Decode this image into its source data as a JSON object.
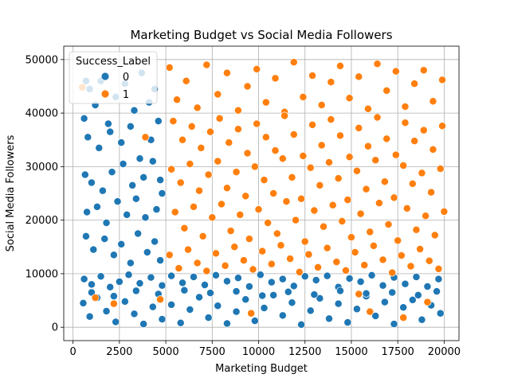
{
  "chart_data": {
    "type": "scatter",
    "title": "Marketing Budget vs Social Media Followers",
    "xlabel": "Marketing Budget",
    "ylabel": "Social Media Followers",
    "xlim": [
      -500,
      20800
    ],
    "ylim": [
      -2500,
      52500
    ],
    "xticks": [
      0,
      2500,
      5000,
      7500,
      10000,
      12500,
      15000,
      17500,
      20000
    ],
    "yticks": [
      0,
      10000,
      20000,
      30000,
      40000,
      50000
    ],
    "grid": true,
    "legend": {
      "title": "Success_Label",
      "position": "top-left"
    },
    "series": [
      {
        "name": "0",
        "color": "#1f77b4",
        "points": [
          [
            600,
            39000
          ],
          [
            700,
            46000
          ],
          [
            900,
            44500
          ],
          [
            1200,
            41500
          ],
          [
            1500,
            46000
          ],
          [
            1900,
            38000
          ],
          [
            2300,
            43000
          ],
          [
            2800,
            45500
          ],
          [
            3300,
            40500
          ],
          [
            3700,
            47500
          ],
          [
            4100,
            42000
          ],
          [
            4400,
            44500
          ],
          [
            800,
            35500
          ],
          [
            1400,
            33500
          ],
          [
            2000,
            36500
          ],
          [
            2600,
            34500
          ],
          [
            3100,
            37500
          ],
          [
            3600,
            31500
          ],
          [
            4200,
            35000
          ],
          [
            4600,
            38500
          ],
          [
            650,
            28500
          ],
          [
            1000,
            27000
          ],
          [
            1600,
            25500
          ],
          [
            2100,
            29000
          ],
          [
            2700,
            30500
          ],
          [
            3200,
            26500
          ],
          [
            3800,
            28000
          ],
          [
            4300,
            31000
          ],
          [
            4700,
            27500
          ],
          [
            750,
            21500
          ],
          [
            1300,
            22500
          ],
          [
            1800,
            19500
          ],
          [
            2400,
            23500
          ],
          [
            2900,
            21000
          ],
          [
            3400,
            24000
          ],
          [
            3900,
            20500
          ],
          [
            4500,
            22000
          ],
          [
            4800,
            25000
          ],
          [
            700,
            17000
          ],
          [
            1100,
            14500
          ],
          [
            1700,
            16500
          ],
          [
            2200,
            13500
          ],
          [
            2600,
            15500
          ],
          [
            3100,
            12000
          ],
          [
            3500,
            17500
          ],
          [
            4000,
            14000
          ],
          [
            4400,
            16000
          ],
          [
            4700,
            12500
          ],
          [
            600,
            9000
          ],
          [
            1000,
            8000
          ],
          [
            1500,
            9500
          ],
          [
            2000,
            7500
          ],
          [
            2500,
            8500
          ],
          [
            3000,
            9800
          ],
          [
            3600,
            8200
          ],
          [
            4200,
            9300
          ],
          [
            4800,
            7800
          ],
          [
            5300,
            9600
          ],
          [
            5900,
            8300
          ],
          [
            6500,
            9400
          ],
          [
            7100,
            7900
          ],
          [
            7700,
            9700
          ],
          [
            8300,
            8600
          ],
          [
            8900,
            9200
          ],
          [
            9500,
            7600
          ],
          [
            10100,
            9800
          ],
          [
            10700,
            8400
          ],
          [
            11300,
            9000
          ],
          [
            11900,
            7700
          ],
          [
            12500,
            9500
          ],
          [
            13100,
            8800
          ],
          [
            13700,
            9600
          ],
          [
            14300,
            7500
          ],
          [
            14900,
            9100
          ],
          [
            15500,
            8500
          ],
          [
            16100,
            9700
          ],
          [
            16700,
            7800
          ],
          [
            17300,
            9300
          ],
          [
            17900,
            8100
          ],
          [
            18500,
            9400
          ],
          [
            19100,
            7600
          ],
          [
            19700,
            9000
          ],
          [
            550,
            4500
          ],
          [
            900,
            2000
          ],
          [
            1300,
            5500
          ],
          [
            1800,
            3000
          ],
          [
            2300,
            1000
          ],
          [
            2800,
            4800
          ],
          [
            3300,
            2500
          ],
          [
            3800,
            600
          ],
          [
            4300,
            3800
          ],
          [
            4800,
            1500
          ],
          [
            5300,
            4200
          ],
          [
            5800,
            800
          ],
          [
            6300,
            3300
          ],
          [
            6800,
            5600
          ],
          [
            7300,
            1800
          ],
          [
            7800,
            4000
          ],
          [
            8300,
            700
          ],
          [
            8800,
            2900
          ],
          [
            9300,
            5200
          ],
          [
            9800,
            1200
          ],
          [
            10300,
            3600
          ],
          [
            10800,
            6000
          ],
          [
            11300,
            2200
          ],
          [
            11800,
            4600
          ],
          [
            12300,
            500
          ],
          [
            12800,
            3100
          ],
          [
            13300,
            5400
          ],
          [
            13800,
            1600
          ],
          [
            14300,
            4400
          ],
          [
            14800,
            900
          ],
          [
            15300,
            3400
          ],
          [
            15800,
            5800
          ],
          [
            16300,
            2100
          ],
          [
            16800,
            4700
          ],
          [
            17300,
            600
          ],
          [
            17800,
            3700
          ],
          [
            18300,
            5100
          ],
          [
            18800,
            1400
          ],
          [
            19300,
            4100
          ],
          [
            19800,
            2600
          ],
          [
            1000,
            6500
          ],
          [
            2200,
            5800
          ],
          [
            3400,
            6800
          ],
          [
            4600,
            6200
          ],
          [
            6000,
            6900
          ],
          [
            7400,
            6400
          ],
          [
            8800,
            6700
          ],
          [
            10200,
            5900
          ],
          [
            11600,
            6600
          ],
          [
            13000,
            6100
          ],
          [
            14400,
            6800
          ],
          [
            15800,
            6300
          ],
          [
            17200,
            6500
          ],
          [
            18600,
            6000
          ],
          [
            19600,
            6700
          ]
        ]
      },
      {
        "name": "1",
        "color": "#ff7f0e",
        "points": [
          [
            500,
            44800
          ],
          [
            1200,
            5500
          ],
          [
            2200,
            4400
          ],
          [
            3900,
            35500
          ],
          [
            4700,
            5200
          ],
          [
            5200,
            48500
          ],
          [
            5600,
            42500
          ],
          [
            6100,
            46000
          ],
          [
            6700,
            41000
          ],
          [
            7200,
            49000
          ],
          [
            7800,
            43500
          ],
          [
            8300,
            47500
          ],
          [
            8900,
            40500
          ],
          [
            9400,
            45000
          ],
          [
            9900,
            48200
          ],
          [
            10400,
            42000
          ],
          [
            10900,
            46500
          ],
          [
            11400,
            40200
          ],
          [
            11900,
            49500
          ],
          [
            12400,
            43000
          ],
          [
            12900,
            47000
          ],
          [
            13400,
            41500
          ],
          [
            13900,
            45800
          ],
          [
            14400,
            48800
          ],
          [
            14900,
            42800
          ],
          [
            15400,
            46800
          ],
          [
            15900,
            40800
          ],
          [
            16400,
            49200
          ],
          [
            16900,
            44200
          ],
          [
            17400,
            47800
          ],
          [
            17900,
            41200
          ],
          [
            18400,
            45500
          ],
          [
            18900,
            48000
          ],
          [
            19400,
            42200
          ],
          [
            19900,
            46200
          ],
          [
            5400,
            38500
          ],
          [
            5900,
            35000
          ],
          [
            6400,
            37500
          ],
          [
            6900,
            33500
          ],
          [
            7400,
            36500
          ],
          [
            7900,
            39000
          ],
          [
            8400,
            34500
          ],
          [
            8900,
            37000
          ],
          [
            9400,
            32500
          ],
          [
            9900,
            38000
          ],
          [
            10400,
            35500
          ],
          [
            10900,
            33000
          ],
          [
            11400,
            39500
          ],
          [
            11900,
            36000
          ],
          [
            12400,
            32000
          ],
          [
            12900,
            37800
          ],
          [
            13400,
            34000
          ],
          [
            13900,
            38800
          ],
          [
            14400,
            35800
          ],
          [
            14900,
            31800
          ],
          [
            15400,
            37200
          ],
          [
            15900,
            33800
          ],
          [
            16400,
            39200
          ],
          [
            16900,
            35200
          ],
          [
            17400,
            32200
          ],
          [
            17900,
            38200
          ],
          [
            18400,
            34800
          ],
          [
            18900,
            36800
          ],
          [
            19400,
            33200
          ],
          [
            19900,
            37600
          ],
          [
            5300,
            29500
          ],
          [
            5800,
            27000
          ],
          [
            6300,
            30500
          ],
          [
            6800,
            25500
          ],
          [
            7300,
            28500
          ],
          [
            7800,
            31000
          ],
          [
            8300,
            26000
          ],
          [
            8800,
            29000
          ],
          [
            9300,
            24500
          ],
          [
            9800,
            30000
          ],
          [
            10300,
            27500
          ],
          [
            10800,
            25000
          ],
          [
            11300,
            31500
          ],
          [
            11800,
            28000
          ],
          [
            12300,
            24000
          ],
          [
            12800,
            29800
          ],
          [
            13300,
            26500
          ],
          [
            13800,
            30800
          ],
          [
            14300,
            27800
          ],
          [
            14800,
            23800
          ],
          [
            15300,
            29200
          ],
          [
            15800,
            25800
          ],
          [
            16300,
            31200
          ],
          [
            16800,
            27200
          ],
          [
            17300,
            24200
          ],
          [
            17800,
            30200
          ],
          [
            18300,
            26800
          ],
          [
            18800,
            28800
          ],
          [
            19300,
            25200
          ],
          [
            19800,
            29600
          ],
          [
            5500,
            21500
          ],
          [
            6000,
            18500
          ],
          [
            6500,
            22500
          ],
          [
            7000,
            17000
          ],
          [
            7500,
            20500
          ],
          [
            8000,
            23000
          ],
          [
            8500,
            18000
          ],
          [
            9000,
            21000
          ],
          [
            9500,
            16500
          ],
          [
            10000,
            22000
          ],
          [
            10500,
            19500
          ],
          [
            11000,
            17500
          ],
          [
            11500,
            23500
          ],
          [
            12000,
            20000
          ],
          [
            12500,
            16000
          ],
          [
            13000,
            21800
          ],
          [
            13500,
            18800
          ],
          [
            14000,
            22800
          ],
          [
            14500,
            19800
          ],
          [
            15000,
            16800
          ],
          [
            15500,
            21200
          ],
          [
            16000,
            17800
          ],
          [
            16500,
            23200
          ],
          [
            17000,
            19200
          ],
          [
            17500,
            16200
          ],
          [
            18000,
            22200
          ],
          [
            18500,
            18200
          ],
          [
            19000,
            20800
          ],
          [
            19500,
            17200
          ],
          [
            20000,
            21600
          ],
          [
            5200,
            13500
          ],
          [
            5700,
            11000
          ],
          [
            6200,
            14500
          ],
          [
            6700,
            12000
          ],
          [
            7200,
            10500
          ],
          [
            7700,
            13800
          ],
          [
            8200,
            11500
          ],
          [
            8700,
            15000
          ],
          [
            9200,
            12500
          ],
          [
            9700,
            10800
          ],
          [
            10200,
            14200
          ],
          [
            10700,
            11800
          ],
          [
            11200,
            15300
          ],
          [
            11700,
            12800
          ],
          [
            12200,
            10300
          ],
          [
            12700,
            13600
          ],
          [
            13200,
            11200
          ],
          [
            13700,
            14800
          ],
          [
            14200,
            12200
          ],
          [
            14700,
            10600
          ],
          [
            15200,
            14000
          ],
          [
            15700,
            11600
          ],
          [
            16200,
            15200
          ],
          [
            16700,
            12600
          ],
          [
            17200,
            10200
          ],
          [
            17700,
            13400
          ],
          [
            18200,
            11400
          ],
          [
            18700,
            14600
          ],
          [
            19200,
            12400
          ],
          [
            19700,
            10900
          ],
          [
            16000,
            2900
          ],
          [
            17800,
            1800
          ],
          [
            19100,
            4700
          ],
          [
            15400,
            6200
          ],
          [
            9600,
            2600
          ]
        ]
      }
    ]
  }
}
